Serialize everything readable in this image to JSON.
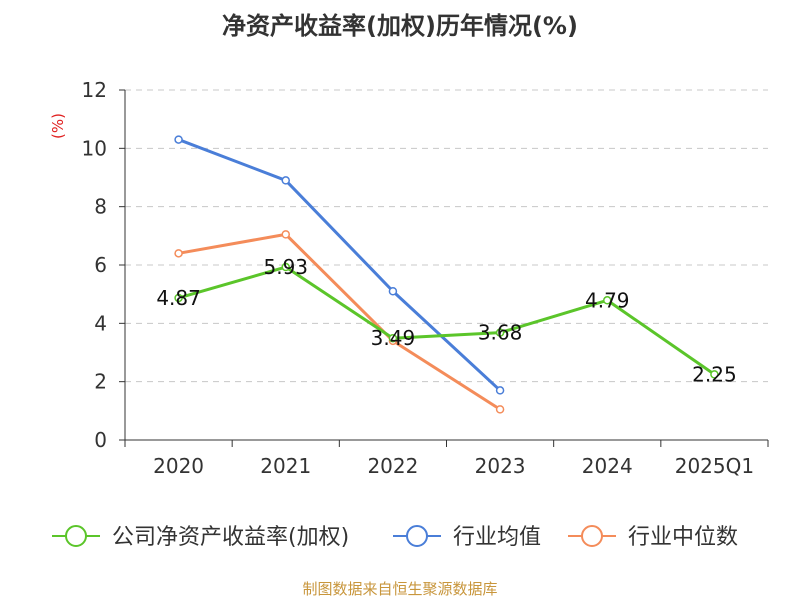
{
  "title": "净资产收益率(加权)历年情况(%)",
  "footer": "制图数据来自恒生聚源数据库",
  "colors": {
    "company": "#5bc52a",
    "industry_avg": "#4a7ed8",
    "industry_median": "#f48c5a",
    "axis": "#333333",
    "grid": "#c8c8c8",
    "unit": "#e02020"
  },
  "chart_data": {
    "type": "line",
    "title": "净资产收益率(加权)历年情况(%)",
    "ylabel": "(%)",
    "xlabel": "",
    "categories": [
      "2020",
      "2021",
      "2022",
      "2023",
      "2024",
      "2025Q1"
    ],
    "ylim": [
      0,
      12
    ],
    "yticks": [
      0,
      2,
      4,
      6,
      8,
      10,
      12
    ],
    "grid": true,
    "legend_position": "bottom",
    "series": [
      {
        "name": "公司净资产收益率(加权)",
        "color_key": "company",
        "values": [
          4.87,
          5.93,
          3.49,
          3.68,
          4.79,
          2.25
        ],
        "labels": [
          "4.87",
          "5.93",
          "3.49",
          "3.68",
          "4.79",
          "2.25"
        ]
      },
      {
        "name": "行业均值",
        "color_key": "industry_avg",
        "values": [
          10.3,
          8.9,
          5.1,
          1.7,
          null,
          null
        ]
      },
      {
        "name": "行业中位数",
        "color_key": "industry_median",
        "values": [
          6.4,
          7.05,
          3.4,
          1.05,
          null,
          null
        ]
      }
    ]
  }
}
